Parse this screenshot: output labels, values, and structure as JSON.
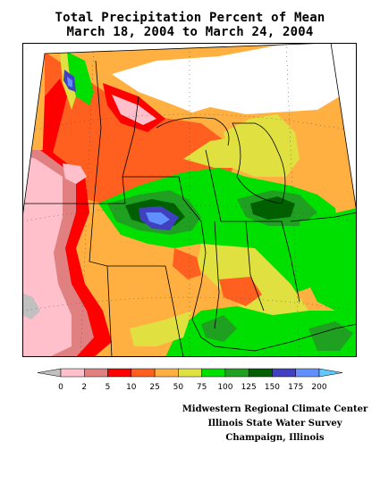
{
  "title_line1": "Total Precipitation Percent of Mean",
  "title_line2": "March 18, 2004 to March 24, 2004",
  "legend": {
    "colors": [
      "#c0c0c0",
      "#ffc0cb",
      "#e08080",
      "#ff0000",
      "#ff6020",
      "#ffb040",
      "#e0e040",
      "#00e000",
      "#20a020",
      "#006000",
      "#4040c0",
      "#6090ff",
      "#60c8ff"
    ],
    "tick_labels": [
      "0",
      "2",
      "5",
      "10",
      "25",
      "50",
      "75",
      "100",
      "125",
      "150",
      "175",
      "200"
    ]
  },
  "credits": {
    "line1": "Midwestern Regional Climate Center",
    "line2": "Illinois State Water Survey",
    "line3": "Champaign, Illinois"
  },
  "map": {
    "background_color": "#ffa040",
    "no_data_color": "#ffffff"
  }
}
